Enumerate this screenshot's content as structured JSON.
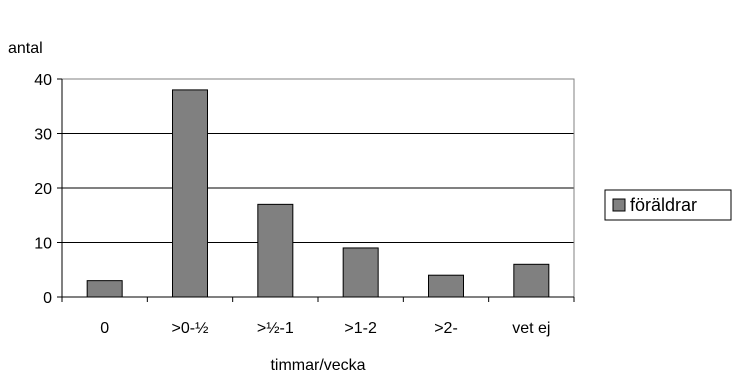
{
  "chart_data": {
    "type": "bar",
    "categories": [
      "0",
      ">0-½",
      ">½-1",
      ">1-2",
      ">2-",
      "vet ej"
    ],
    "series": [
      {
        "name": "föräldrar",
        "values": [
          3,
          38,
          17,
          9,
          4,
          6
        ],
        "color": "#808080"
      }
    ],
    "xlabel": "timmar/vecka",
    "ylabel": "antal",
    "ylim": [
      0,
      40
    ],
    "yticks": [
      0,
      10,
      20,
      30,
      40
    ],
    "grid": true,
    "legend": "right"
  }
}
